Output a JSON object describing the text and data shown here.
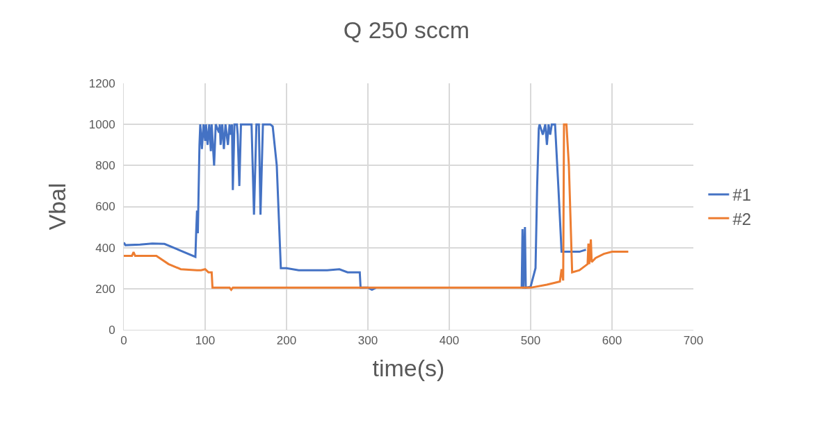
{
  "chart_data": {
    "type": "line",
    "title": "Q 250 sccm",
    "xlabel": "time(s)",
    "ylabel": "Vbal",
    "xlim": [
      0,
      700
    ],
    "xticks": [
      0,
      100,
      200,
      300,
      400,
      500,
      600,
      700
    ],
    "ylim": [
      0,
      1200
    ],
    "yticks": [
      0,
      200,
      400,
      600,
      800,
      1000,
      1200
    ],
    "grid": true,
    "legend": "right",
    "marker": "none",
    "line_style": "solid",
    "series": [
      {
        "name": "#1",
        "color": "#4472c4",
        "x": [
          0,
          2,
          20,
          35,
          50,
          70,
          88,
          89,
          90,
          91,
          93,
          94,
          96,
          98,
          100,
          101,
          103,
          105,
          107,
          108,
          111,
          113,
          117,
          118,
          119,
          121,
          123,
          125,
          128,
          130,
          131,
          133,
          134,
          136,
          139,
          140,
          142,
          144,
          155,
          157,
          160,
          163,
          166,
          168,
          171,
          180,
          183,
          188,
          193,
          200,
          215,
          250,
          265,
          275,
          290,
          291,
          300,
          305,
          310,
          480,
          489,
          490,
          491,
          493,
          494,
          500,
          506,
          508,
          510,
          511,
          515,
          518,
          520,
          522,
          524,
          526,
          530,
          534,
          538,
          560,
          568
        ],
        "values": [
          425,
          412,
          415,
          420,
          418,
          385,
          355,
          480,
          580,
          470,
          900,
          1000,
          880,
          1000,
          920,
          1000,
          900,
          1000,
          870,
          1000,
          800,
          1000,
          960,
          1000,
          900,
          1000,
          880,
          1000,
          900,
          1000,
          950,
          1000,
          680,
          1000,
          1000,
          950,
          700,
          1000,
          1000,
          1000,
          560,
          1000,
          1000,
          560,
          1000,
          1000,
          990,
          800,
          300,
          300,
          290,
          290,
          295,
          280,
          280,
          205,
          205,
          195,
          205,
          null,
          205,
          490,
          200,
          500,
          205,
          210,
          300,
          700,
          980,
          1000,
          950,
          1000,
          900,
          1000,
          950,
          1000,
          1000,
          700,
          380,
          380,
          390
        ]
      },
      {
        "name": "#2",
        "color": "#ed7d31",
        "x": [
          0,
          10,
          12,
          14,
          40,
          55,
          70,
          90,
          95,
          100,
          104,
          108,
          109,
          130,
          132,
          134,
          300,
          500,
          520,
          536,
          538,
          540,
          541,
          544,
          547,
          551,
          560,
          570,
          571,
          572,
          574,
          575,
          580,
          590,
          600,
          620
        ],
        "values": [
          360,
          360,
          378,
          360,
          360,
          320,
          295,
          290,
          290,
          295,
          280,
          280,
          205,
          205,
          195,
          205,
          205,
          205,
          220,
          235,
          295,
          240,
          1000,
          1000,
          800,
          280,
          290,
          320,
          420,
          320,
          440,
          330,
          350,
          370,
          380,
          380
        ]
      }
    ]
  }
}
